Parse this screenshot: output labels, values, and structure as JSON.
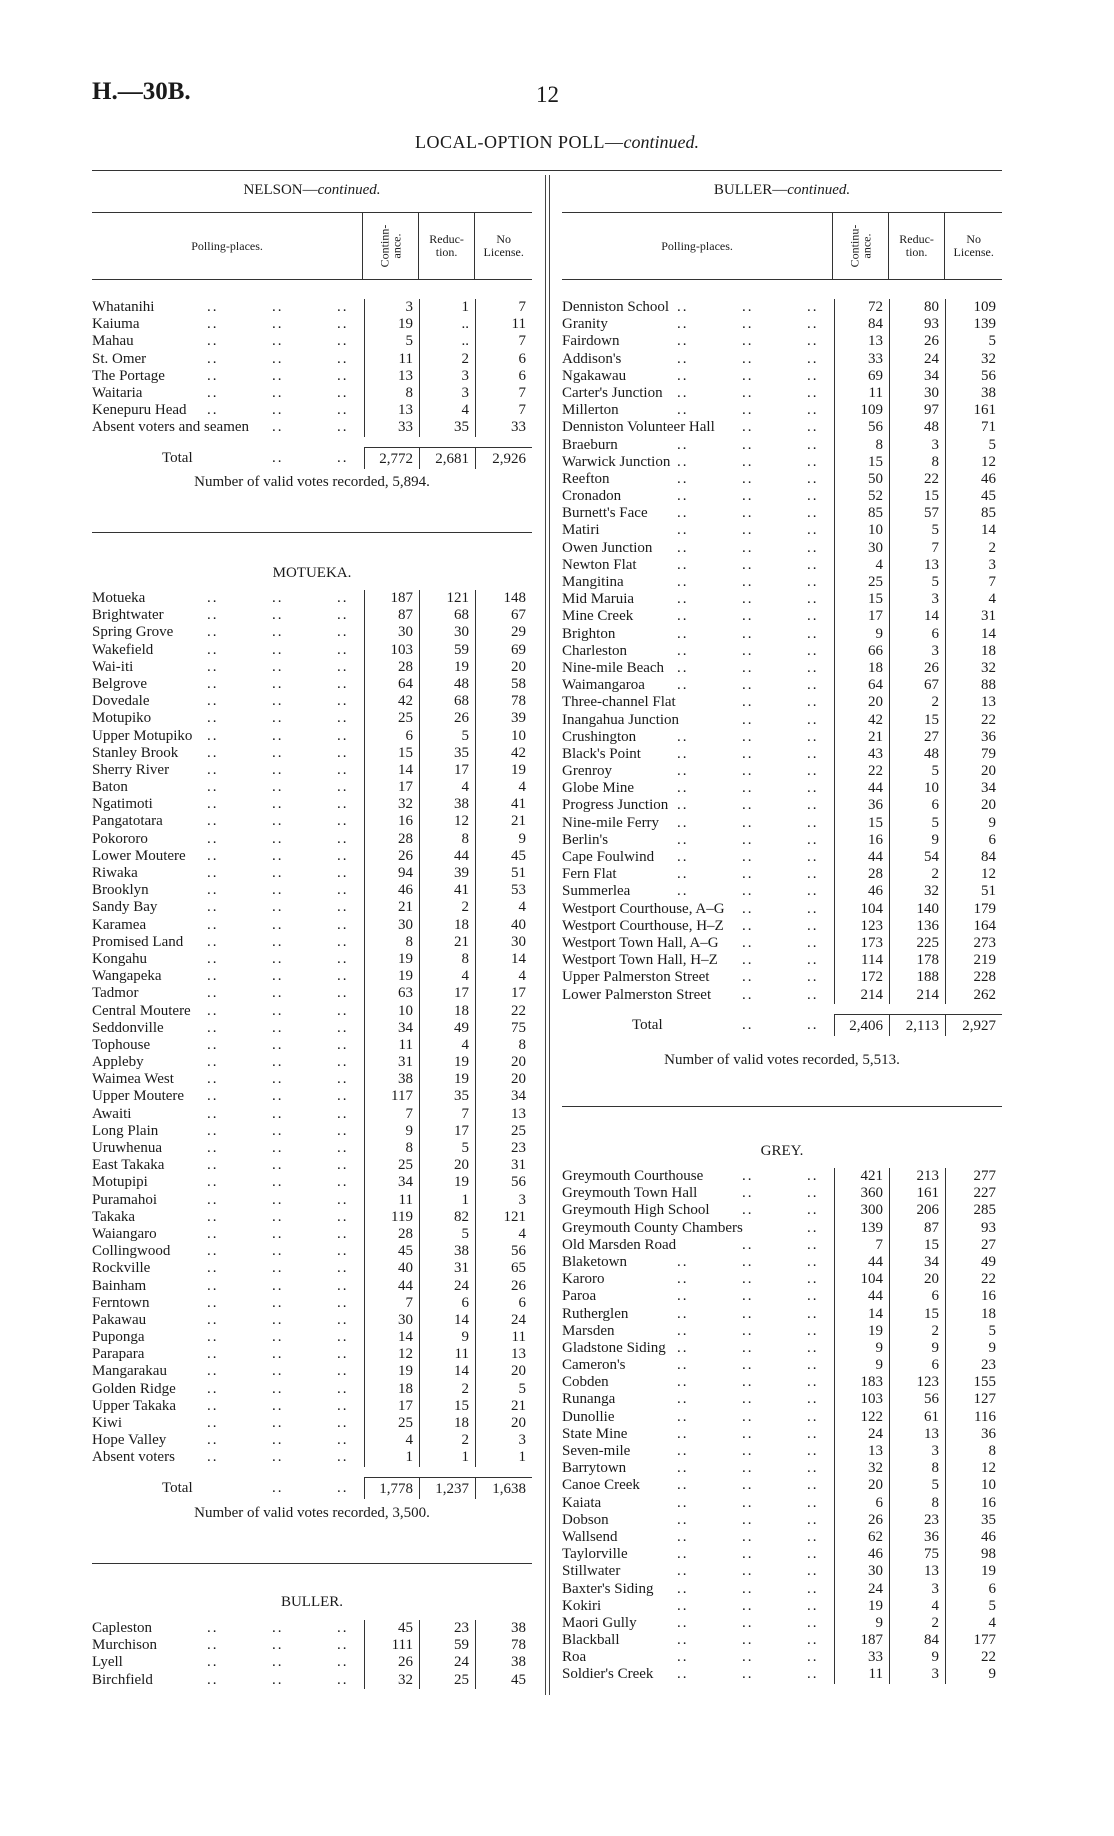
{
  "page": {
    "code": "H.—30B.",
    "number": "12",
    "title": "LOCAL-OPTION POLL—",
    "title_italic": "continued."
  },
  "columns": {
    "polling_places": "Polling-places.",
    "continuance": "Continu-ance.",
    "continuance_left": "Continn-ance.",
    "reduction": "Reduc-tion.",
    "no_license": "No License."
  },
  "left": {
    "nelson": {
      "heading": "NELSON—",
      "heading_italic": "continued.",
      "rows": [
        [
          "Whatanihi",
          "3",
          "1",
          "7"
        ],
        [
          "Kaiuma",
          "19",
          "..",
          "11"
        ],
        [
          "Mahau",
          "5",
          "..",
          "7"
        ],
        [
          "St. Omer",
          "11",
          "2",
          "6"
        ],
        [
          "The Portage",
          "13",
          "3",
          "6"
        ],
        [
          "Waitaria",
          "8",
          "3",
          "7"
        ],
        [
          "Kenepuru Head",
          "13",
          "4",
          "7"
        ],
        [
          "Absent voters and seamen",
          "33",
          "35",
          "33"
        ]
      ],
      "total": [
        "Total",
        "2,772",
        "2,681",
        "2,926"
      ],
      "votes": "Number of valid votes recorded, 5,894."
    },
    "motueka": {
      "heading": "MOTUEKA.",
      "rows": [
        [
          "Motueka",
          "187",
          "121",
          "148"
        ],
        [
          "Brightwater",
          "87",
          "68",
          "67"
        ],
        [
          "Spring Grove",
          "30",
          "30",
          "29"
        ],
        [
          "Wakefield",
          "103",
          "59",
          "69"
        ],
        [
          "Wai-iti",
          "28",
          "19",
          "20"
        ],
        [
          "Belgrove",
          "64",
          "48",
          "58"
        ],
        [
          "Dovedale",
          "42",
          "68",
          "78"
        ],
        [
          "Motupiko",
          "25",
          "26",
          "39"
        ],
        [
          "Upper Motupiko",
          "6",
          "5",
          "10"
        ],
        [
          "Stanley Brook",
          "15",
          "35",
          "42"
        ],
        [
          "Sherry River",
          "14",
          "17",
          "19"
        ],
        [
          "Baton",
          "17",
          "4",
          "4"
        ],
        [
          "Ngatimoti",
          "32",
          "38",
          "41"
        ],
        [
          "Pangatotara",
          "16",
          "12",
          "21"
        ],
        [
          "Pokororo",
          "28",
          "8",
          "9"
        ],
        [
          "Lower Moutere",
          "26",
          "44",
          "45"
        ],
        [
          "Riwaka",
          "94",
          "39",
          "51"
        ],
        [
          "Brooklyn",
          "46",
          "41",
          "53"
        ],
        [
          "Sandy Bay",
          "21",
          "2",
          "4"
        ],
        [
          "Karamea",
          "30",
          "18",
          "40"
        ],
        [
          "Promised Land",
          "8",
          "21",
          "30"
        ],
        [
          "Kongahu",
          "19",
          "8",
          "14"
        ],
        [
          "Wangapeka",
          "19",
          "4",
          "4"
        ],
        [
          "Tadmor",
          "63",
          "17",
          "17"
        ],
        [
          "Central Moutere",
          "10",
          "18",
          "22"
        ],
        [
          "Seddonville",
          "34",
          "49",
          "75"
        ],
        [
          "Tophouse",
          "11",
          "4",
          "8"
        ],
        [
          "Appleby",
          "31",
          "19",
          "20"
        ],
        [
          "Waimea West",
          "38",
          "19",
          "20"
        ],
        [
          "Upper Moutere",
          "117",
          "35",
          "34"
        ],
        [
          "Awaiti",
          "7",
          "7",
          "13"
        ],
        [
          "Long Plain",
          "9",
          "17",
          "25"
        ],
        [
          "Uruwhenua",
          "8",
          "5",
          "23"
        ],
        [
          "East Takaka",
          "25",
          "20",
          "31"
        ],
        [
          "Motupipi",
          "34",
          "19",
          "56"
        ],
        [
          "Puramahoi",
          "11",
          "1",
          "3"
        ],
        [
          "Takaka",
          "119",
          "82",
          "121"
        ],
        [
          "Waiangaro",
          "28",
          "5",
          "4"
        ],
        [
          "Collingwood",
          "45",
          "38",
          "56"
        ],
        [
          "Rockville",
          "40",
          "31",
          "65"
        ],
        [
          "Bainham",
          "44",
          "24",
          "26"
        ],
        [
          "Ferntown",
          "7",
          "6",
          "6"
        ],
        [
          "Pakawau",
          "30",
          "14",
          "24"
        ],
        [
          "Puponga",
          "14",
          "9",
          "11"
        ],
        [
          "Parapara",
          "12",
          "11",
          "13"
        ],
        [
          "Mangarakau",
          "19",
          "14",
          "20"
        ],
        [
          "Golden Ridge",
          "18",
          "2",
          "5"
        ],
        [
          "Upper Takaka",
          "17",
          "15",
          "21"
        ],
        [
          "Kiwi",
          "25",
          "18",
          "20"
        ],
        [
          "Hope Valley",
          "4",
          "2",
          "3"
        ],
        [
          "Absent voters",
          "1",
          "1",
          "1"
        ]
      ],
      "total": [
        "Total",
        "1,778",
        "1,237",
        "1,638"
      ],
      "votes": "Number of valid votes recorded, 3,500."
    },
    "buller": {
      "heading": "BULLER.",
      "rows": [
        [
          "Capleston",
          "45",
          "23",
          "38"
        ],
        [
          "Murchison",
          "111",
          "59",
          "78"
        ],
        [
          "Lyell",
          "26",
          "24",
          "38"
        ],
        [
          "Birchfield",
          "32",
          "25",
          "45"
        ]
      ]
    }
  },
  "right": {
    "buller": {
      "heading": "BULLER—",
      "heading_italic": "continued.",
      "rows": [
        [
          "Denniston School",
          "72",
          "80",
          "109"
        ],
        [
          "Granity",
          "84",
          "93",
          "139"
        ],
        [
          "Fairdown",
          "13",
          "26",
          "5"
        ],
        [
          "Addison's",
          "33",
          "24",
          "32"
        ],
        [
          "Ngakawau",
          "69",
          "34",
          "56"
        ],
        [
          "Carter's Junction",
          "11",
          "30",
          "38"
        ],
        [
          "Millerton",
          "109",
          "97",
          "161"
        ],
        [
          "Denniston Volunteer Hall",
          "56",
          "48",
          "71"
        ],
        [
          "Braeburn",
          "8",
          "3",
          "5"
        ],
        [
          "Warwick Junction",
          "15",
          "8",
          "12"
        ],
        [
          "Reefton",
          "50",
          "22",
          "46"
        ],
        [
          "Cronadon",
          "52",
          "15",
          "45"
        ],
        [
          "Burnett's Face",
          "85",
          "57",
          "85"
        ],
        [
          "Matiri",
          "10",
          "5",
          "14"
        ],
        [
          "Owen Junction",
          "30",
          "7",
          "2"
        ],
        [
          "Newton Flat",
          "4",
          "13",
          "3"
        ],
        [
          "Mangitina",
          "25",
          "5",
          "7"
        ],
        [
          "Mid Maruia",
          "15",
          "3",
          "4"
        ],
        [
          "Mine Creek",
          "17",
          "14",
          "31"
        ],
        [
          "Brighton",
          "9",
          "6",
          "14"
        ],
        [
          "Charleston",
          "66",
          "3",
          "18"
        ],
        [
          "Nine-mile Beach",
          "18",
          "26",
          "32"
        ],
        [
          "Waimangaroa",
          "64",
          "67",
          "88"
        ],
        [
          "Three-channel Flat",
          "20",
          "2",
          "13"
        ],
        [
          "Inangahua Junction",
          "42",
          "15",
          "22"
        ],
        [
          "Crushington",
          "21",
          "27",
          "36"
        ],
        [
          "Black's Point",
          "43",
          "48",
          "79"
        ],
        [
          "Grenroy",
          "22",
          "5",
          "20"
        ],
        [
          "Globe Mine",
          "44",
          "10",
          "34"
        ],
        [
          "Progress Junction",
          "36",
          "6",
          "20"
        ],
        [
          "Nine-mile Ferry",
          "15",
          "5",
          "9"
        ],
        [
          "Berlin's",
          "16",
          "9",
          "6"
        ],
        [
          "Cape Foulwind",
          "44",
          "54",
          "84"
        ],
        [
          "Fern Flat",
          "28",
          "2",
          "12"
        ],
        [
          "Summerlea",
          "46",
          "32",
          "51"
        ],
        [
          "Westport Courthouse, A–G",
          "104",
          "140",
          "179"
        ],
        [
          "Westport Courthouse, H–Z",
          "123",
          "136",
          "164"
        ],
        [
          "Westport Town Hall, A–G",
          "173",
          "225",
          "273"
        ],
        [
          "Westport Town Hall, H–Z",
          "114",
          "178",
          "219"
        ],
        [
          "Upper Palmerston Street",
          "172",
          "188",
          "228"
        ],
        [
          "Lower Palmerston Street",
          "214",
          "214",
          "262"
        ]
      ],
      "total": [
        "Total",
        "2,406",
        "2,113",
        "2,927"
      ],
      "votes": "Number of valid votes recorded, 5,513."
    },
    "grey": {
      "heading": "GREY.",
      "rows": [
        [
          "Greymouth Courthouse",
          "421",
          "213",
          "277"
        ],
        [
          "Greymouth Town Hall",
          "360",
          "161",
          "227"
        ],
        [
          "Greymouth High School",
          "300",
          "206",
          "285"
        ],
        [
          "Greymouth County Chambers",
          "139",
          "87",
          "93"
        ],
        [
          "Old Marsden Road",
          "7",
          "15",
          "27"
        ],
        [
          "Blaketown",
          "44",
          "34",
          "49"
        ],
        [
          "Karoro",
          "104",
          "20",
          "22"
        ],
        [
          "Paroa",
          "44",
          "6",
          "16"
        ],
        [
          "Rutherglen",
          "14",
          "15",
          "18"
        ],
        [
          "Marsden",
          "19",
          "2",
          "5"
        ],
        [
          "Gladstone Siding",
          "9",
          "9",
          "9"
        ],
        [
          "Cameron's",
          "9",
          "6",
          "23"
        ],
        [
          "Cobden",
          "183",
          "123",
          "155"
        ],
        [
          "Runanga",
          "103",
          "56",
          "127"
        ],
        [
          "Dunollie",
          "122",
          "61",
          "116"
        ],
        [
          "State Mine",
          "24",
          "13",
          "36"
        ],
        [
          "Seven-mile",
          "13",
          "3",
          "8"
        ],
        [
          "Barrytown",
          "32",
          "8",
          "12"
        ],
        [
          "Canoe Creek",
          "20",
          "5",
          "10"
        ],
        [
          "Kaiata",
          "6",
          "8",
          "16"
        ],
        [
          "Dobson",
          "26",
          "23",
          "35"
        ],
        [
          "Wallsend",
          "62",
          "36",
          "46"
        ],
        [
          "Taylorville",
          "46",
          "75",
          "98"
        ],
        [
          "Stillwater",
          "30",
          "13",
          "19"
        ],
        [
          "Baxter's Siding",
          "24",
          "3",
          "6"
        ],
        [
          "Kokiri",
          "19",
          "4",
          "5"
        ],
        [
          "Maori Gully",
          "9",
          "2",
          "4"
        ],
        [
          "Blackball",
          "187",
          "84",
          "177"
        ],
        [
          "Roa",
          "33",
          "9",
          "22"
        ],
        [
          "Soldier's Creek",
          "11",
          "3",
          "9"
        ]
      ]
    }
  }
}
